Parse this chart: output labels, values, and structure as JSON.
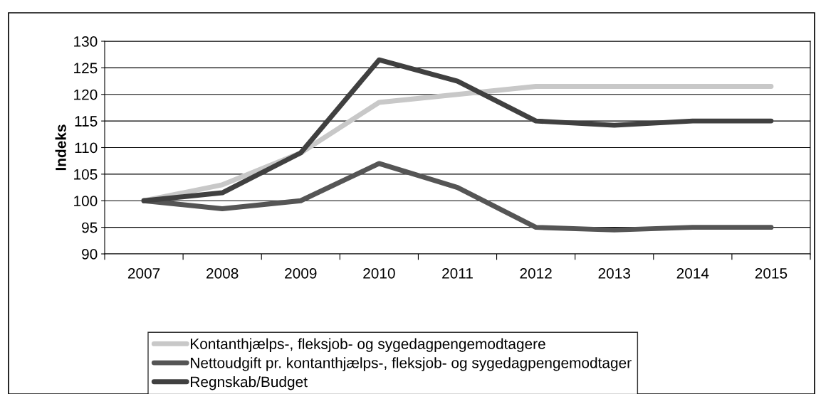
{
  "chart_data": {
    "type": "line",
    "ylabel": "Indeks",
    "categories": [
      "2007",
      "2008",
      "2009",
      "2010",
      "2011",
      "2012",
      "2013",
      "2014",
      "2015"
    ],
    "series": [
      {
        "name": "Kontanthjælps-, fleksjob- og sygedagpengemodtagere",
        "color": "#c8c8c8",
        "values": [
          100,
          103,
          109,
          118.5,
          120,
          121.5,
          121.5,
          121.5,
          121.5
        ]
      },
      {
        "name": "Nettoudgift pr. kontanthjælps-, fleksjob- og sygedagpengemodtager",
        "color": "#555555",
        "values": [
          100,
          98.5,
          100,
          107,
          102.5,
          95,
          94.5,
          95,
          95
        ]
      },
      {
        "name": "Regnskab/Budget",
        "color": "#404040",
        "values": [
          100,
          101.5,
          109,
          126.5,
          122.5,
          115,
          114.2,
          115,
          115
        ]
      }
    ],
    "ylim": [
      90,
      130
    ],
    "yticks": [
      90,
      95,
      100,
      105,
      110,
      115,
      120,
      125,
      130
    ],
    "grid": "y",
    "legend": "bottom",
    "marker": "none",
    "line_style": "solid"
  }
}
